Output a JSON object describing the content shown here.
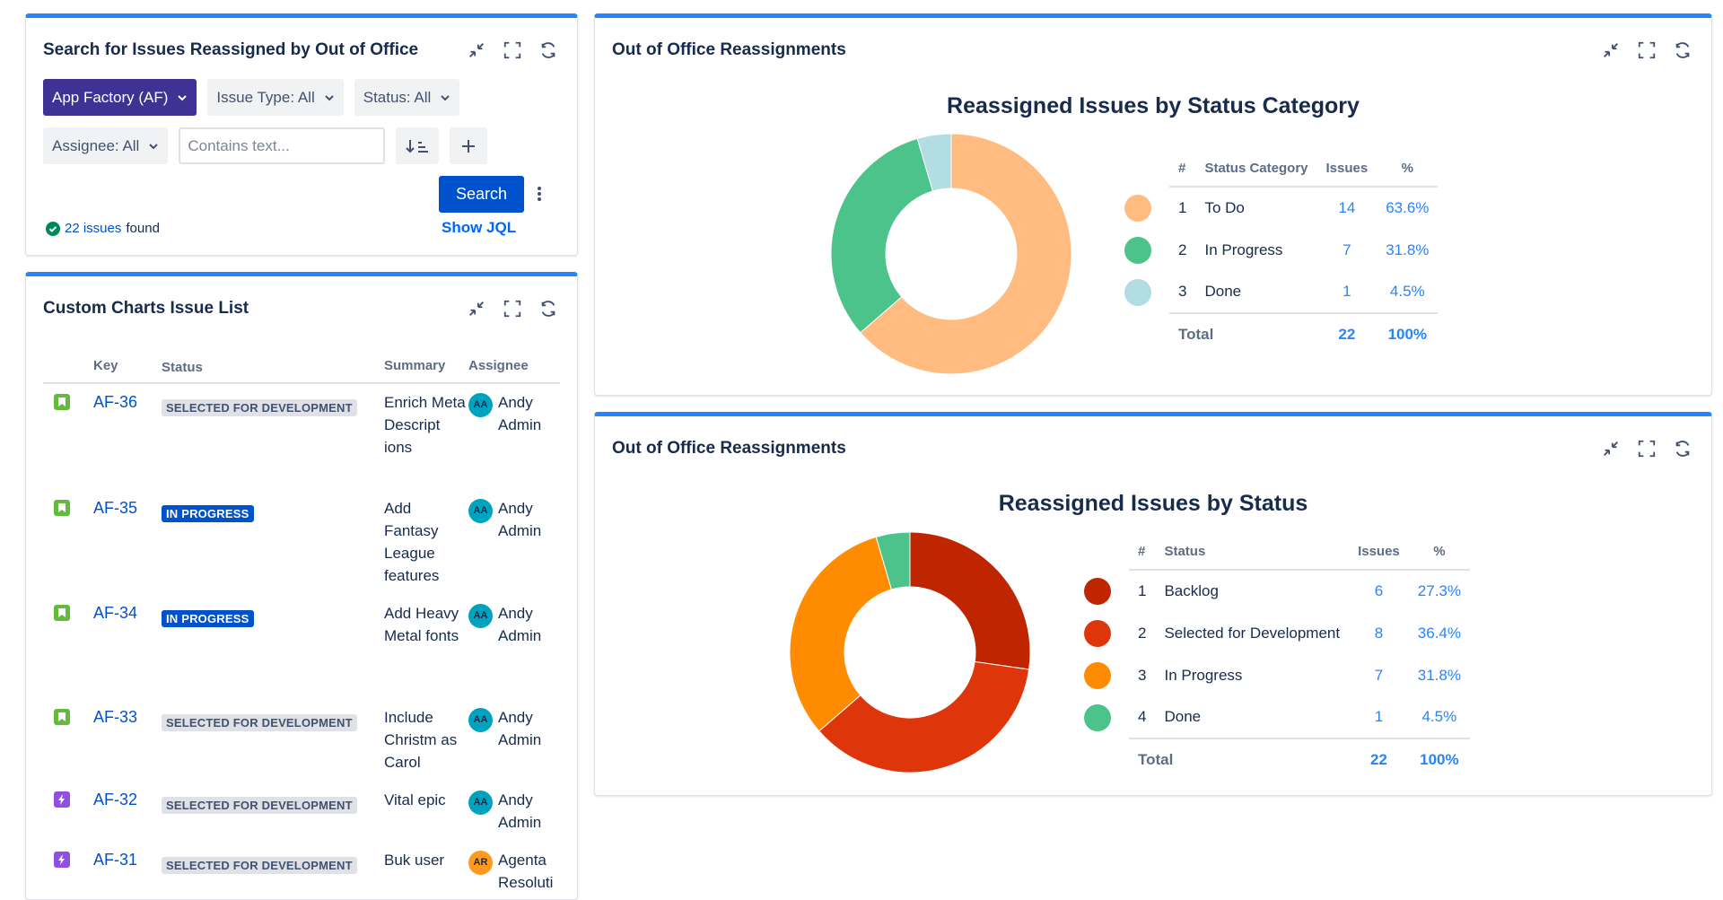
{
  "search_gadget": {
    "title": "Search for Issues Reassigned by Out of Office",
    "project_filter": "App Factory (AF)",
    "issue_type_filter": "Issue Type: All",
    "status_filter": "Status: All",
    "assignee_filter": "Assignee: All",
    "text_placeholder": "Contains text...",
    "search_label": "Search",
    "show_jql_label": "Show JQL",
    "found_link": "22 issues",
    "found_suffix": "found"
  },
  "issue_list": {
    "title": "Custom Charts Issue List",
    "columns": {
      "key": "Key",
      "status": "Status",
      "summary": "Summary",
      "assignee": "Assignee"
    },
    "rows": [
      {
        "type": "story",
        "key": "AF-36",
        "status": "SELECTED FOR DEVELOPMENT",
        "status_color": "grey",
        "summary": "Enrich Meta Descript ions",
        "avatar": "AA",
        "avatar_color": "#00a3bf",
        "assignee": "Andy Admin"
      },
      {
        "type": "story",
        "key": "AF-35",
        "status": "IN PROGRESS",
        "status_color": "blue",
        "summary": "Add Fantasy League features",
        "avatar": "AA",
        "avatar_color": "#00a3bf",
        "assignee": "Andy Admin"
      },
      {
        "type": "story",
        "key": "AF-34",
        "status": "IN PROGRESS",
        "status_color": "blue",
        "summary": "Add Heavy Metal fonts",
        "avatar": "AA",
        "avatar_color": "#00a3bf",
        "assignee": "Andy Admin"
      },
      {
        "type": "story",
        "key": "AF-33",
        "status": "SELECTED FOR DEVELOPMENT",
        "status_color": "grey",
        "summary": "Include Christm as Carol",
        "avatar": "AA",
        "avatar_color": "#00a3bf",
        "assignee": "Andy Admin"
      },
      {
        "type": "epic",
        "key": "AF-32",
        "status": "SELECTED FOR DEVELOPMENT",
        "status_color": "grey",
        "summary": "Vital epic",
        "avatar": "AA",
        "avatar_color": "#00a3bf",
        "assignee": "Andy Admin"
      },
      {
        "type": "epic",
        "key": "AF-31",
        "status": "SELECTED FOR DEVELOPMENT",
        "status_color": "grey",
        "summary": "Buk user",
        "avatar": "AR",
        "avatar_color": "#ff991f",
        "assignee": "Agenta Resoluti"
      }
    ]
  },
  "chart_gadget_1": {
    "title": "Out of Office Reassignments",
    "legend_headers": {
      "num": "#",
      "label": "Status Category",
      "issues": "Issues",
      "pct": "%"
    },
    "total_label": "Total",
    "total_issues": "22",
    "total_pct": "100%"
  },
  "chart_gadget_2": {
    "title": "Out of Office Reassignments",
    "legend_headers": {
      "num": "#",
      "label": "Status",
      "issues": "Issues",
      "pct": "%"
    },
    "total_label": "Total",
    "total_issues": "22",
    "total_pct": "100%"
  },
  "chart_data": [
    {
      "type": "pie",
      "title": "Reassigned Issues by Status Category",
      "categories": [
        "To Do",
        "In Progress",
        "Done"
      ],
      "values": [
        14,
        7,
        1
      ],
      "percentages": [
        "63.6%",
        "31.8%",
        "4.5%"
      ],
      "colors": [
        "#ffbb80",
        "#4bc38a",
        "#b2dde3"
      ]
    },
    {
      "type": "pie",
      "title": "Reassigned Issues by Status",
      "categories": [
        "Backlog",
        "Selected for Development",
        "In Progress",
        "Done"
      ],
      "values": [
        6,
        8,
        7,
        1
      ],
      "percentages": [
        "27.3%",
        "36.4%",
        "31.8%",
        "4.5%"
      ],
      "colors": [
        "#bf2600",
        "#de350b",
        "#ff8b00",
        "#4bc38a"
      ]
    }
  ]
}
